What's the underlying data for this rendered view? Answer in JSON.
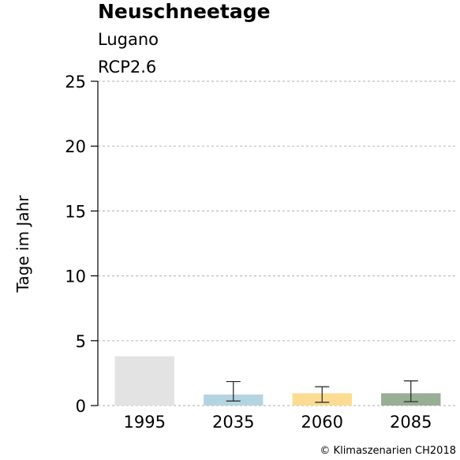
{
  "chart_data": {
    "type": "bar",
    "title": "Neuschneetage",
    "subtitle_lines": [
      "Lugano",
      "RCP2.6"
    ],
    "ylabel": "Tage im Jahr",
    "xlabel": "",
    "ylim": [
      0,
      25
    ],
    "yticks": [
      0,
      5,
      10,
      15,
      20,
      25
    ],
    "grid": true,
    "categories": [
      "1995",
      "2035",
      "2060",
      "2085"
    ],
    "values": [
      3.8,
      0.85,
      0.95,
      0.95
    ],
    "error_low": [
      null,
      0.35,
      0.25,
      0.3
    ],
    "error_high": [
      null,
      1.85,
      1.45,
      1.9
    ],
    "colors": [
      "#e3e3e3",
      "#b5d4e1",
      "#fbdc92",
      "#98af95"
    ],
    "credit": "© Klimaszenarien CH2018"
  }
}
